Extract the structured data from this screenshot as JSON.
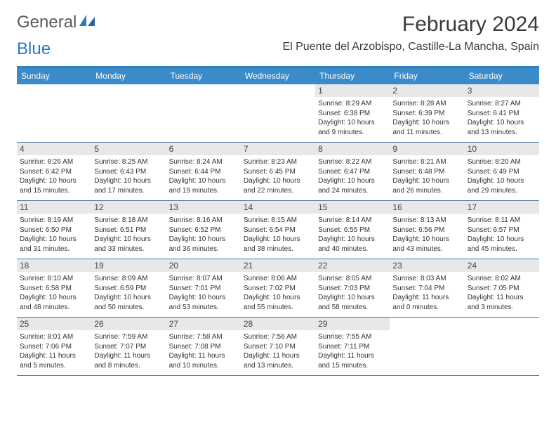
{
  "header": {
    "logo_part1": "General",
    "logo_part2": "Blue",
    "month_title": "February 2024",
    "location": "El Puente del Arzobispo, Castille-La Mancha, Spain"
  },
  "colors": {
    "header_bar": "#3b8bc9",
    "border": "#2b7bbf",
    "daynum_bg": "#e8e8e8"
  },
  "day_names": [
    "Sunday",
    "Monday",
    "Tuesday",
    "Wednesday",
    "Thursday",
    "Friday",
    "Saturday"
  ],
  "weeks": [
    [
      {
        "empty": true
      },
      {
        "empty": true
      },
      {
        "empty": true
      },
      {
        "empty": true
      },
      {
        "num": "1",
        "sunrise": "Sunrise: 8:29 AM",
        "sunset": "Sunset: 6:38 PM",
        "daylight": "Daylight: 10 hours and 9 minutes."
      },
      {
        "num": "2",
        "sunrise": "Sunrise: 8:28 AM",
        "sunset": "Sunset: 6:39 PM",
        "daylight": "Daylight: 10 hours and 11 minutes."
      },
      {
        "num": "3",
        "sunrise": "Sunrise: 8:27 AM",
        "sunset": "Sunset: 6:41 PM",
        "daylight": "Daylight: 10 hours and 13 minutes."
      }
    ],
    [
      {
        "num": "4",
        "sunrise": "Sunrise: 8:26 AM",
        "sunset": "Sunset: 6:42 PM",
        "daylight": "Daylight: 10 hours and 15 minutes."
      },
      {
        "num": "5",
        "sunrise": "Sunrise: 8:25 AM",
        "sunset": "Sunset: 6:43 PM",
        "daylight": "Daylight: 10 hours and 17 minutes."
      },
      {
        "num": "6",
        "sunrise": "Sunrise: 8:24 AM",
        "sunset": "Sunset: 6:44 PM",
        "daylight": "Daylight: 10 hours and 19 minutes."
      },
      {
        "num": "7",
        "sunrise": "Sunrise: 8:23 AM",
        "sunset": "Sunset: 6:45 PM",
        "daylight": "Daylight: 10 hours and 22 minutes."
      },
      {
        "num": "8",
        "sunrise": "Sunrise: 8:22 AM",
        "sunset": "Sunset: 6:47 PM",
        "daylight": "Daylight: 10 hours and 24 minutes."
      },
      {
        "num": "9",
        "sunrise": "Sunrise: 8:21 AM",
        "sunset": "Sunset: 6:48 PM",
        "daylight": "Daylight: 10 hours and 26 minutes."
      },
      {
        "num": "10",
        "sunrise": "Sunrise: 8:20 AM",
        "sunset": "Sunset: 6:49 PM",
        "daylight": "Daylight: 10 hours and 29 minutes."
      }
    ],
    [
      {
        "num": "11",
        "sunrise": "Sunrise: 8:19 AM",
        "sunset": "Sunset: 6:50 PM",
        "daylight": "Daylight: 10 hours and 31 minutes."
      },
      {
        "num": "12",
        "sunrise": "Sunrise: 8:18 AM",
        "sunset": "Sunset: 6:51 PM",
        "daylight": "Daylight: 10 hours and 33 minutes."
      },
      {
        "num": "13",
        "sunrise": "Sunrise: 8:16 AM",
        "sunset": "Sunset: 6:52 PM",
        "daylight": "Daylight: 10 hours and 36 minutes."
      },
      {
        "num": "14",
        "sunrise": "Sunrise: 8:15 AM",
        "sunset": "Sunset: 6:54 PM",
        "daylight": "Daylight: 10 hours and 38 minutes."
      },
      {
        "num": "15",
        "sunrise": "Sunrise: 8:14 AM",
        "sunset": "Sunset: 6:55 PM",
        "daylight": "Daylight: 10 hours and 40 minutes."
      },
      {
        "num": "16",
        "sunrise": "Sunrise: 8:13 AM",
        "sunset": "Sunset: 6:56 PM",
        "daylight": "Daylight: 10 hours and 43 minutes."
      },
      {
        "num": "17",
        "sunrise": "Sunrise: 8:11 AM",
        "sunset": "Sunset: 6:57 PM",
        "daylight": "Daylight: 10 hours and 45 minutes."
      }
    ],
    [
      {
        "num": "18",
        "sunrise": "Sunrise: 8:10 AM",
        "sunset": "Sunset: 6:58 PM",
        "daylight": "Daylight: 10 hours and 48 minutes."
      },
      {
        "num": "19",
        "sunrise": "Sunrise: 8:09 AM",
        "sunset": "Sunset: 6:59 PM",
        "daylight": "Daylight: 10 hours and 50 minutes."
      },
      {
        "num": "20",
        "sunrise": "Sunrise: 8:07 AM",
        "sunset": "Sunset: 7:01 PM",
        "daylight": "Daylight: 10 hours and 53 minutes."
      },
      {
        "num": "21",
        "sunrise": "Sunrise: 8:06 AM",
        "sunset": "Sunset: 7:02 PM",
        "daylight": "Daylight: 10 hours and 55 minutes."
      },
      {
        "num": "22",
        "sunrise": "Sunrise: 8:05 AM",
        "sunset": "Sunset: 7:03 PM",
        "daylight": "Daylight: 10 hours and 58 minutes."
      },
      {
        "num": "23",
        "sunrise": "Sunrise: 8:03 AM",
        "sunset": "Sunset: 7:04 PM",
        "daylight": "Daylight: 11 hours and 0 minutes."
      },
      {
        "num": "24",
        "sunrise": "Sunrise: 8:02 AM",
        "sunset": "Sunset: 7:05 PM",
        "daylight": "Daylight: 11 hours and 3 minutes."
      }
    ],
    [
      {
        "num": "25",
        "sunrise": "Sunrise: 8:01 AM",
        "sunset": "Sunset: 7:06 PM",
        "daylight": "Daylight: 11 hours and 5 minutes."
      },
      {
        "num": "26",
        "sunrise": "Sunrise: 7:59 AM",
        "sunset": "Sunset: 7:07 PM",
        "daylight": "Daylight: 11 hours and 8 minutes."
      },
      {
        "num": "27",
        "sunrise": "Sunrise: 7:58 AM",
        "sunset": "Sunset: 7:08 PM",
        "daylight": "Daylight: 11 hours and 10 minutes."
      },
      {
        "num": "28",
        "sunrise": "Sunrise: 7:56 AM",
        "sunset": "Sunset: 7:10 PM",
        "daylight": "Daylight: 11 hours and 13 minutes."
      },
      {
        "num": "29",
        "sunrise": "Sunrise: 7:55 AM",
        "sunset": "Sunset: 7:11 PM",
        "daylight": "Daylight: 11 hours and 15 minutes."
      },
      {
        "empty": true
      },
      {
        "empty": true
      }
    ]
  ]
}
